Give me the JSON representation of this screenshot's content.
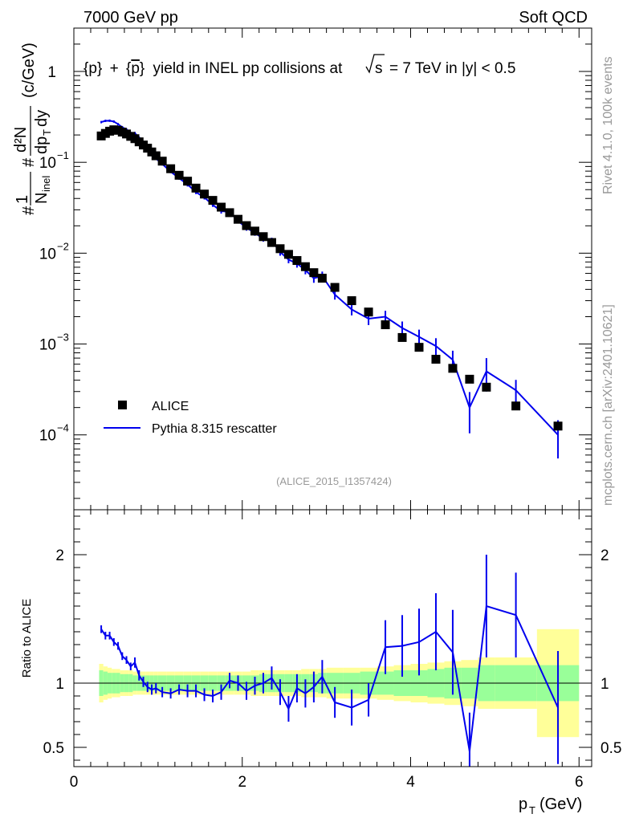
{
  "header": {
    "left": "7000 GeV pp",
    "right": "Soft QCD"
  },
  "side": {
    "rivet": "Rivet 4.1.0,  100k events",
    "mcplots": "mcplots.cern.ch [arXiv:2401.10621]"
  },
  "colors": {
    "data": "#000000",
    "mc": "#0000ee",
    "band_inner": "#99ff99",
    "band_outer": "#ffff99"
  },
  "chart_data": [
    {
      "type": "scatter",
      "title": "{p} + {p̄} yield in INEL pp collisions at √s = 7 TeV in |y| < 0.5",
      "title_parts": {
        "p": "p",
        "plus": "+",
        "pbar": "p",
        "rest": "yield in INEL pp collisions at",
        "s": "s",
        "energy": "=  7 TeV in |y| < 0.5",
        "lbrace": "{",
        "rbrace": "}"
      },
      "ylabel_parts": {
        "hash1": "#",
        "one": "1",
        "n": "N",
        "inel": "inel",
        "hash2": "#",
        "d2n": "d²N",
        "dpt": "dp",
        "t": "T",
        "dy": "dy",
        "unit": "(c/GeV)"
      },
      "yscale": "log",
      "xlim": [
        0,
        6.15
      ],
      "ylim": [
        1.5e-05,
        3.0
      ],
      "yticks": [
        {
          "v": 1,
          "base": "1",
          "exp": ""
        },
        {
          "v": 0.1,
          "base": "10",
          "exp": "−1"
        },
        {
          "v": 0.01,
          "base": "10",
          "exp": "−2"
        },
        {
          "v": 0.001,
          "base": "10",
          "exp": "−3"
        },
        {
          "v": 0.0001,
          "base": "10",
          "exp": "−4"
        }
      ],
      "legend": {
        "position": "lower-left",
        "entries": [
          "ALICE",
          "Pythia 8.315 rescatter"
        ]
      },
      "watermark": "(ALICE_2015_I1357424)",
      "data_series": {
        "name": "ALICE",
        "x": [
          0.325,
          0.375,
          0.425,
          0.475,
          0.525,
          0.575,
          0.625,
          0.675,
          0.725,
          0.775,
          0.825,
          0.875,
          0.925,
          0.975,
          1.05,
          1.15,
          1.25,
          1.35,
          1.45,
          1.55,
          1.65,
          1.75,
          1.85,
          1.95,
          2.05,
          2.15,
          2.25,
          2.35,
          2.45,
          2.55,
          2.65,
          2.75,
          2.85,
          2.95,
          3.1,
          3.3,
          3.5,
          3.7,
          3.9,
          4.1,
          4.3,
          4.5,
          4.7,
          4.9,
          5.25,
          5.75
        ],
        "y": [
          0.195,
          0.208,
          0.22,
          0.228,
          0.225,
          0.215,
          0.205,
          0.193,
          0.182,
          0.168,
          0.155,
          0.143,
          0.13,
          0.118,
          0.103,
          0.085,
          0.072,
          0.062,
          0.052,
          0.0447,
          0.0381,
          0.0321,
          0.0279,
          0.0236,
          0.0201,
          0.0175,
          0.0152,
          0.0131,
          0.0112,
          0.0097,
          0.0083,
          0.0071,
          0.0061,
          0.0053,
          0.0042,
          0.003,
          0.00225,
          0.00163,
          0.00118,
          0.00092,
          0.00068,
          0.00054,
          0.00041,
          0.000335,
          0.000208,
          0.000125
        ]
      },
      "mc_series": {
        "name": "Pythia 8.315 rescatter",
        "x": [
          0.325,
          0.375,
          0.425,
          0.475,
          0.525,
          0.575,
          0.625,
          0.675,
          0.725,
          0.775,
          0.825,
          0.875,
          0.925,
          0.975,
          1.05,
          1.15,
          1.25,
          1.35,
          1.45,
          1.55,
          1.65,
          1.75,
          1.85,
          1.95,
          2.05,
          2.15,
          2.25,
          2.35,
          2.45,
          2.55,
          2.65,
          2.75,
          2.85,
          2.95,
          3.1,
          3.3,
          3.5,
          3.7,
          3.9,
          4.1,
          4.3,
          4.5,
          4.7,
          4.9,
          5.25,
          5.75
        ],
        "y": [
          0.277,
          0.286,
          0.287,
          0.281,
          0.263,
          0.243,
          0.23,
          0.21,
          0.21,
          0.185,
          0.162,
          0.138,
          0.125,
          0.11,
          0.096,
          0.079,
          0.067,
          0.057,
          0.047,
          0.041,
          0.034,
          0.029,
          0.0285,
          0.0226,
          0.019,
          0.0167,
          0.0144,
          0.0137,
          0.0103,
          0.0085,
          0.0077,
          0.0065,
          0.0053,
          0.0056,
          0.0035,
          0.0024,
          0.0019,
          0.002,
          0.0015,
          0.0012,
          0.00095,
          0.00067,
          0.0002,
          0.0005,
          0.00031,
          0.0001
        ],
        "err_rel": [
          0.03,
          0.03,
          0.03,
          0.03,
          0.03,
          0.03,
          0.03,
          0.03,
          0.03,
          0.04,
          0.04,
          0.04,
          0.04,
          0.04,
          0.04,
          0.04,
          0.04,
          0.05,
          0.05,
          0.05,
          0.05,
          0.06,
          0.06,
          0.06,
          0.07,
          0.07,
          0.07,
          0.08,
          0.09,
          0.09,
          0.1,
          0.1,
          0.11,
          0.12,
          0.12,
          0.14,
          0.15,
          0.16,
          0.18,
          0.2,
          0.22,
          0.26,
          0.48,
          0.4,
          0.3,
          0.45
        ]
      }
    },
    {
      "type": "line",
      "ylabel": "Ratio to ALICE",
      "xlabel_parts": {
        "p": "p",
        "t": "T",
        "unit": "(GeV)"
      },
      "xlim": [
        0,
        6.15
      ],
      "ylim": [
        0.35,
        2.35
      ],
      "xticks": [
        {
          "v": 0,
          "label": "0"
        },
        {
          "v": 2,
          "label": "2"
        },
        {
          "v": 4,
          "label": "4"
        },
        {
          "v": 6,
          "label": "6"
        }
      ],
      "yticks": [
        {
          "v": 2,
          "label": "2"
        },
        {
          "v": 1,
          "label": "1"
        },
        {
          "v": 0.5,
          "label": "0.5"
        }
      ],
      "bins": [
        0.3,
        0.35,
        0.4,
        0.45,
        0.5,
        0.55,
        0.6,
        0.65,
        0.7,
        0.75,
        0.8,
        0.85,
        0.9,
        0.95,
        1.0,
        1.1,
        1.2,
        1.3,
        1.4,
        1.5,
        1.6,
        1.7,
        1.8,
        1.9,
        2.0,
        2.1,
        2.2,
        2.3,
        2.4,
        2.5,
        2.6,
        2.7,
        2.8,
        2.9,
        3.0,
        3.2,
        3.4,
        3.6,
        3.8,
        4.0,
        4.2,
        4.4,
        4.6,
        4.8,
        5.0,
        5.5,
        6.0
      ],
      "band_inner": [
        0.1,
        0.09,
        0.08,
        0.08,
        0.08,
        0.07,
        0.07,
        0.07,
        0.06,
        0.06,
        0.06,
        0.06,
        0.06,
        0.06,
        0.06,
        0.06,
        0.06,
        0.06,
        0.06,
        0.06,
        0.06,
        0.06,
        0.06,
        0.06,
        0.06,
        0.06,
        0.07,
        0.07,
        0.07,
        0.07,
        0.07,
        0.07,
        0.07,
        0.08,
        0.08,
        0.08,
        0.09,
        0.09,
        0.1,
        0.1,
        0.11,
        0.12,
        0.12,
        0.14,
        0.14,
        0.14
      ],
      "band_outer": [
        0.15,
        0.13,
        0.12,
        0.11,
        0.11,
        0.1,
        0.1,
        0.1,
        0.09,
        0.09,
        0.09,
        0.09,
        0.09,
        0.09,
        0.09,
        0.09,
        0.09,
        0.09,
        0.09,
        0.09,
        0.09,
        0.09,
        0.09,
        0.09,
        0.09,
        0.1,
        0.1,
        0.1,
        0.1,
        0.1,
        0.1,
        0.11,
        0.11,
        0.11,
        0.12,
        0.12,
        0.12,
        0.13,
        0.14,
        0.15,
        0.16,
        0.17,
        0.18,
        0.2,
        0.2,
        0.42
      ],
      "x": [
        0.325,
        0.375,
        0.425,
        0.475,
        0.525,
        0.575,
        0.625,
        0.675,
        0.725,
        0.775,
        0.825,
        0.875,
        0.925,
        0.975,
        1.05,
        1.15,
        1.25,
        1.35,
        1.45,
        1.55,
        1.65,
        1.75,
        1.85,
        1.95,
        2.05,
        2.15,
        2.25,
        2.35,
        2.45,
        2.55,
        2.65,
        2.75,
        2.85,
        2.95,
        3.1,
        3.3,
        3.5,
        3.7,
        3.9,
        4.1,
        4.3,
        4.5,
        4.7,
        4.9,
        5.25,
        5.75
      ],
      "ratio": [
        1.42,
        1.37,
        1.37,
        1.32,
        1.29,
        1.21,
        1.18,
        1.13,
        1.16,
        1.06,
        1.01,
        0.97,
        0.95,
        0.96,
        0.93,
        0.92,
        0.95,
        0.94,
        0.94,
        0.91,
        0.9,
        0.93,
        1.02,
        1.0,
        0.94,
        0.98,
        1.0,
        1.04,
        0.93,
        0.8,
        0.96,
        0.92,
        0.97,
        1.05,
        0.85,
        0.81,
        0.87,
        1.28,
        1.29,
        1.32,
        1.4,
        1.24,
        0.47,
        1.6,
        1.53,
        0.81
      ],
      "err": [
        0.03,
        0.03,
        0.03,
        0.03,
        0.03,
        0.03,
        0.03,
        0.03,
        0.04,
        0.04,
        0.04,
        0.04,
        0.04,
        0.04,
        0.04,
        0.04,
        0.04,
        0.05,
        0.05,
        0.05,
        0.05,
        0.06,
        0.06,
        0.06,
        0.07,
        0.07,
        0.08,
        0.09,
        0.1,
        0.1,
        0.11,
        0.11,
        0.12,
        0.13,
        0.12,
        0.14,
        0.13,
        0.21,
        0.24,
        0.26,
        0.3,
        0.33,
        0.3,
        0.4,
        0.33,
        0.44
      ]
    }
  ]
}
